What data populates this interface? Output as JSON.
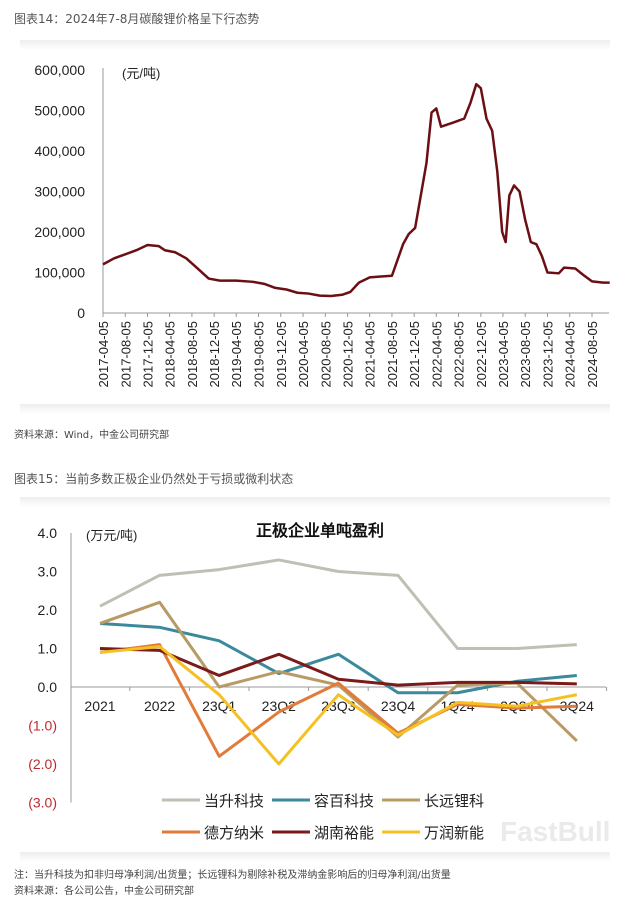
{
  "figure14": {
    "caption": "图表14：2024年7-8月碳酸锂价格呈下行态势",
    "source": "资料来源：Wind，中金公司研究部"
  },
  "figure15": {
    "caption": "图表15：当前多数正极企业仍然处于亏损或微利状态",
    "note": "注：当升科技为扣非归母净利润/出货量；长远锂科为剔除补税及滞纳金影响后的归母净利润/出货量",
    "source": "资料来源：各公司公告，中金公司研究部",
    "watermark": "FastBull"
  },
  "chart_data": [
    {
      "type": "line",
      "title": "",
      "ylabel": "(元/吨)",
      "ylim": [
        0,
        600000
      ],
      "yticks": [
        "0",
        "100,000",
        "200,000",
        "300,000",
        "400,000",
        "500,000",
        "600,000"
      ],
      "xticks": [
        "2017-04-05",
        "2017-08-05",
        "2017-12-05",
        "2018-04-05",
        "2018-08-05",
        "2018-12-05",
        "2019-04-05",
        "2019-08-05",
        "2019-12-05",
        "2020-04-05",
        "2020-08-05",
        "2020-12-05",
        "2021-04-05",
        "2021-08-05",
        "2021-12-05",
        "2022-04-05",
        "2022-08-05",
        "2022-12-05",
        "2023-04-05",
        "2023-08-05",
        "2023-12-05",
        "2024-04-05",
        "2024-08-05"
      ],
      "grid": false,
      "color": "#6b0f14",
      "series": [
        {
          "x": [
            "2017-04-05",
            "2017-06-05",
            "2017-08-05",
            "2017-10-05",
            "2017-12-05",
            "2018-02-05",
            "2018-03-10",
            "2018-05-05",
            "2018-07-05",
            "2018-09-05",
            "2018-11-05",
            "2019-01-05",
            "2019-04-05",
            "2019-07-05",
            "2019-09-05",
            "2019-11-05",
            "2020-01-05",
            "2020-03-05",
            "2020-05-05",
            "2020-07-05",
            "2020-09-05",
            "2020-11-05",
            "2020-12-20",
            "2021-02-05",
            "2021-04-05",
            "2021-06-05",
            "2021-08-05",
            "2021-10-05",
            "2021-11-05",
            "2021-12-10",
            "2022-01-10",
            "2022-02-10",
            "2022-03-10",
            "2022-04-05",
            "2022-05-01",
            "2022-07-05",
            "2022-09-05",
            "2022-10-10",
            "2022-11-10",
            "2022-12-05",
            "2023-01-05",
            "2023-02-05",
            "2023-03-05",
            "2023-04-01",
            "2023-04-20",
            "2023-05-10",
            "2023-06-05",
            "2023-07-05",
            "2023-08-05",
            "2023-09-05",
            "2023-10-05",
            "2023-11-05",
            "2023-12-05",
            "2024-02-05",
            "2024-03-05",
            "2024-05-05",
            "2024-06-15",
            "2024-08-05",
            "2024-10-05",
            "2024-11-10"
          ],
          "y": [
            120000,
            135000,
            145000,
            155000,
            168000,
            165000,
            155000,
            150000,
            135000,
            110000,
            85000,
            80000,
            80000,
            77000,
            72000,
            62000,
            58000,
            50000,
            48000,
            43000,
            42000,
            45000,
            52000,
            75000,
            88000,
            90000,
            92000,
            170000,
            195000,
            210000,
            290000,
            370000,
            495000,
            505000,
            460000,
            470000,
            480000,
            520000,
            565000,
            555000,
            480000,
            450000,
            350000,
            200000,
            175000,
            290000,
            315000,
            300000,
            230000,
            175000,
            170000,
            140000,
            100000,
            98000,
            112000,
            110000,
            95000,
            78000,
            75000,
            75000
          ]
        }
      ]
    },
    {
      "type": "line",
      "title": "正极企业单吨盈利",
      "ylabel": "(万元/吨)",
      "ylim": [
        -3,
        4
      ],
      "yticks": [
        "4.0",
        "3.0",
        "2.0",
        "1.0",
        "0.0",
        "(1.0)",
        "(2.0)",
        "(3.0)"
      ],
      "categories": [
        "2021",
        "2022",
        "23Q1",
        "23Q2",
        "23Q3",
        "23Q4",
        "1Q24",
        "2Q24",
        "3Q24"
      ],
      "legend": "bottom",
      "grid": false,
      "series": [
        {
          "name": "当升科技",
          "color": "#bfbfb4",
          "values": [
            2.1,
            2.9,
            3.05,
            3.3,
            3.0,
            2.9,
            1.0,
            1.0,
            1.1
          ]
        },
        {
          "name": "容百科技",
          "color": "#3a8a9c",
          "values": [
            1.65,
            1.55,
            1.2,
            0.35,
            0.85,
            -0.15,
            -0.15,
            0.15,
            0.3
          ]
        },
        {
          "name": "长远锂科",
          "color": "#b89a64",
          "values": [
            1.65,
            2.2,
            0.0,
            0.4,
            0.05,
            -1.3,
            0.05,
            0.1,
            -1.4
          ]
        },
        {
          "name": "德方纳米",
          "color": "#e07b39",
          "values": [
            0.9,
            1.1,
            -1.8,
            -0.65,
            0.1,
            -1.2,
            -0.45,
            -0.55,
            -0.5
          ]
        },
        {
          "name": "湖南裕能",
          "color": "#7b1a1a",
          "values": [
            1.0,
            0.95,
            0.3,
            0.85,
            0.2,
            0.05,
            0.12,
            0.12,
            0.08
          ]
        },
        {
          "name": "万润新能",
          "color": "#f5c022",
          "values": [
            0.9,
            1.05,
            -0.2,
            -2.0,
            -0.2,
            -1.25,
            -0.4,
            -0.5,
            -0.2
          ]
        }
      ]
    }
  ]
}
